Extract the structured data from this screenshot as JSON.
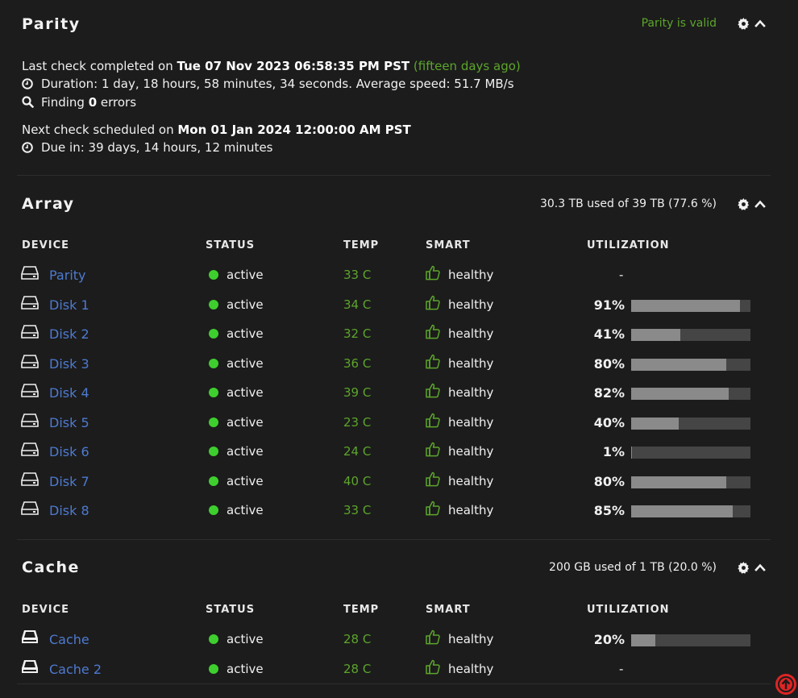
{
  "parity": {
    "title": "Parity",
    "status_text": "Parity is valid",
    "last_check_prefix": "Last check completed on ",
    "last_check_date": "Tue 07 Nov 2023 06:58:35 PM PST",
    "last_check_ago": "(fifteen days ago)",
    "duration": "Duration: 1 day, 18 hours, 58 minutes, 34 seconds. Average speed: 51.7 MB/s",
    "finding_prefix": "Finding ",
    "finding_count": "0",
    "finding_suffix": " errors",
    "next_prefix": "Next check scheduled on ",
    "next_date": "Mon 01 Jan 2024 12:00:00 AM PST",
    "due_in": "Due in: 39 days, 14 hours, 12 minutes"
  },
  "columns": {
    "device": "DEVICE",
    "status": "STATUS",
    "temp": "TEMP",
    "smart": "SMART",
    "utilization": "UTILIZATION"
  },
  "array": {
    "title": "Array",
    "usage": "30.3 TB used of 39 TB (77.6 %)",
    "rows": [
      {
        "name": "Parity",
        "status": "active",
        "temp": "33 C",
        "smart": "healthy",
        "util_label": "-",
        "util_value": null
      },
      {
        "name": "Disk 1",
        "status": "active",
        "temp": "34 C",
        "smart": "healthy",
        "util_label": "91%",
        "util_value": 91
      },
      {
        "name": "Disk 2",
        "status": "active",
        "temp": "32 C",
        "smart": "healthy",
        "util_label": "41%",
        "util_value": 41
      },
      {
        "name": "Disk 3",
        "status": "active",
        "temp": "36 C",
        "smart": "healthy",
        "util_label": "80%",
        "util_value": 80
      },
      {
        "name": "Disk 4",
        "status": "active",
        "temp": "39 C",
        "smart": "healthy",
        "util_label": "82%",
        "util_value": 82
      },
      {
        "name": "Disk 5",
        "status": "active",
        "temp": "23 C",
        "smart": "healthy",
        "util_label": "40%",
        "util_value": 40
      },
      {
        "name": "Disk 6",
        "status": "active",
        "temp": "24 C",
        "smart": "healthy",
        "util_label": "1%",
        "util_value": 1
      },
      {
        "name": "Disk 7",
        "status": "active",
        "temp": "40 C",
        "smart": "healthy",
        "util_label": "80%",
        "util_value": 80
      },
      {
        "name": "Disk 8",
        "status": "active",
        "temp": "33 C",
        "smart": "healthy",
        "util_label": "85%",
        "util_value": 85
      }
    ]
  },
  "cache": {
    "title": "Cache",
    "usage": "200 GB used of 1 TB (20.0 %)",
    "rows": [
      {
        "name": "Cache",
        "status": "active",
        "temp": "28 C",
        "smart": "healthy",
        "util_label": "20%",
        "util_value": 20
      },
      {
        "name": "Cache 2",
        "status": "active",
        "temp": "28 C",
        "smart": "healthy",
        "util_label": "-",
        "util_value": null
      }
    ]
  },
  "icons": {
    "settings": "gear-icon",
    "collapse": "chevron-up-icon",
    "duration": "clock-icon",
    "finding": "search-icon",
    "disk": "hard-drive-icon",
    "cache_disk": "ssd-icon",
    "smart": "thumbs-up-icon",
    "scroll_top": "arrow-up-circle-icon"
  },
  "colors": {
    "background": "#1c1c1c",
    "accent_green": "#5ca52b",
    "status_dot": "#3ecf2e",
    "link_blue": "#4e7ad0",
    "bar_fill": "#8a8a8a",
    "bar_track": "#454545",
    "scroll_button": "#e02424"
  }
}
